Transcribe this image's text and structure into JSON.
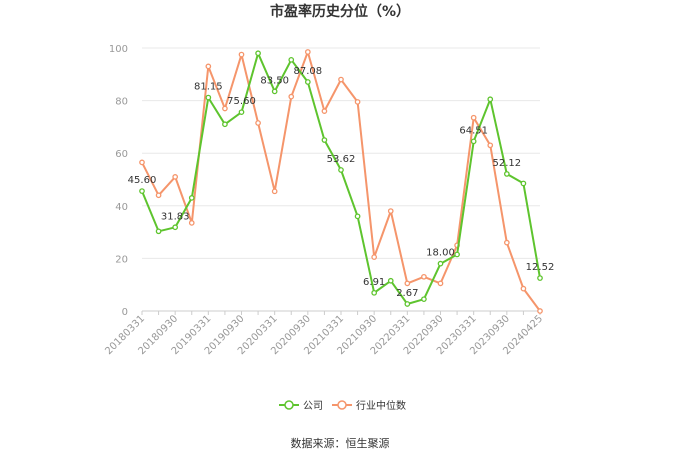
{
  "chart_data": {
    "type": "line",
    "title": "市盈率历史分位（%）",
    "source": "数据来源：恒生聚源",
    "ylim": [
      0,
      100
    ],
    "yticks": [
      0,
      20,
      40,
      60,
      80,
      100
    ],
    "xticks": [
      "20180331",
      "20180930",
      "20190331",
      "20190930",
      "20200331",
      "20200930",
      "20210331",
      "20210930",
      "20220331",
      "20220930",
      "20230331",
      "20230930",
      "20240425"
    ],
    "grid": true,
    "legend_position": "bottom",
    "series": [
      {
        "name": "公司",
        "color": "#5ec42e",
        "values": [
          45.6,
          30.3,
          31.83,
          43.0,
          81.15,
          71.0,
          75.6,
          98.0,
          83.5,
          95.5,
          87.08,
          65.0,
          53.62,
          36.0,
          6.91,
          11.5,
          2.67,
          4.5,
          18.0,
          21.5,
          64.51,
          80.5,
          52.12,
          48.5,
          12.52
        ],
        "labels": {
          "0": "45.60",
          "2": "31.83",
          "4": "81.15",
          "6": "75.60",
          "8": "83.50",
          "10": "87.08",
          "12": "53.62",
          "14": "6.91",
          "16": "2.67",
          "18": "18.00",
          "20": "64.51",
          "22": "52.12",
          "24": "12.52"
        }
      },
      {
        "name": "行业中位数",
        "color": "#f5956b",
        "values": [
          56.5,
          44.0,
          51.0,
          33.5,
          93.0,
          77.0,
          97.5,
          71.5,
          45.5,
          81.5,
          98.5,
          76.0,
          88.0,
          79.5,
          20.5,
          38.0,
          10.5,
          13.0,
          10.5,
          25.0,
          73.5,
          63.0,
          26.0,
          8.5,
          0.0
        ]
      }
    ]
  }
}
